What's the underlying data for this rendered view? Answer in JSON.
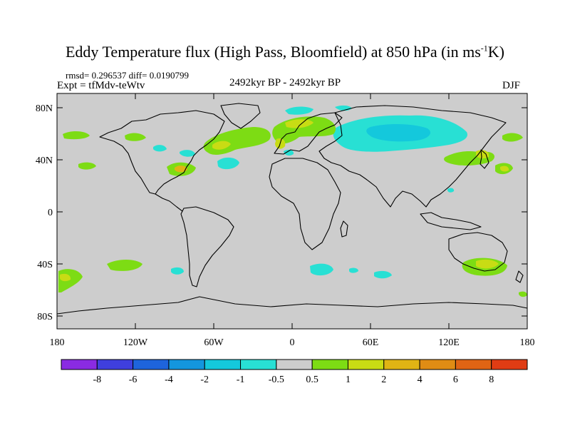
{
  "title": {
    "main": "Eddy Temperature flux (High Pass, Bloomfield) at 850 hPa (in ms",
    "sup": "-1",
    "tail": "K)"
  },
  "stats": "rmsd= 0.296537  diff= 0.0190799",
  "expt": "Expt = tfMdv-teWtv",
  "period": "2492kyr BP - 2492kyr BP",
  "season": "DJF",
  "axes": {
    "lat_labels": [
      "80N",
      "40N",
      "0",
      "40S",
      "80S"
    ],
    "lon_labels": [
      "180",
      "120W",
      "60W",
      "0",
      "60E",
      "120E",
      "180"
    ]
  },
  "colorbar": {
    "colors": [
      "#8a2be2",
      "#3f3fde",
      "#1e64dc",
      "#1496de",
      "#14c8dc",
      "#28e0d4",
      "#cdcdcd",
      "#7ddc14",
      "#c8dc14",
      "#e0b414",
      "#e08c14",
      "#e06414",
      "#e03c14"
    ],
    "labels": [
      "-8",
      "-6",
      "-4",
      "-2",
      "-1",
      "-0.5",
      "0.5",
      "1",
      "2",
      "4",
      "6",
      "8"
    ]
  },
  "map": {
    "background": "#cdcdcd",
    "coast": "#000000"
  }
}
